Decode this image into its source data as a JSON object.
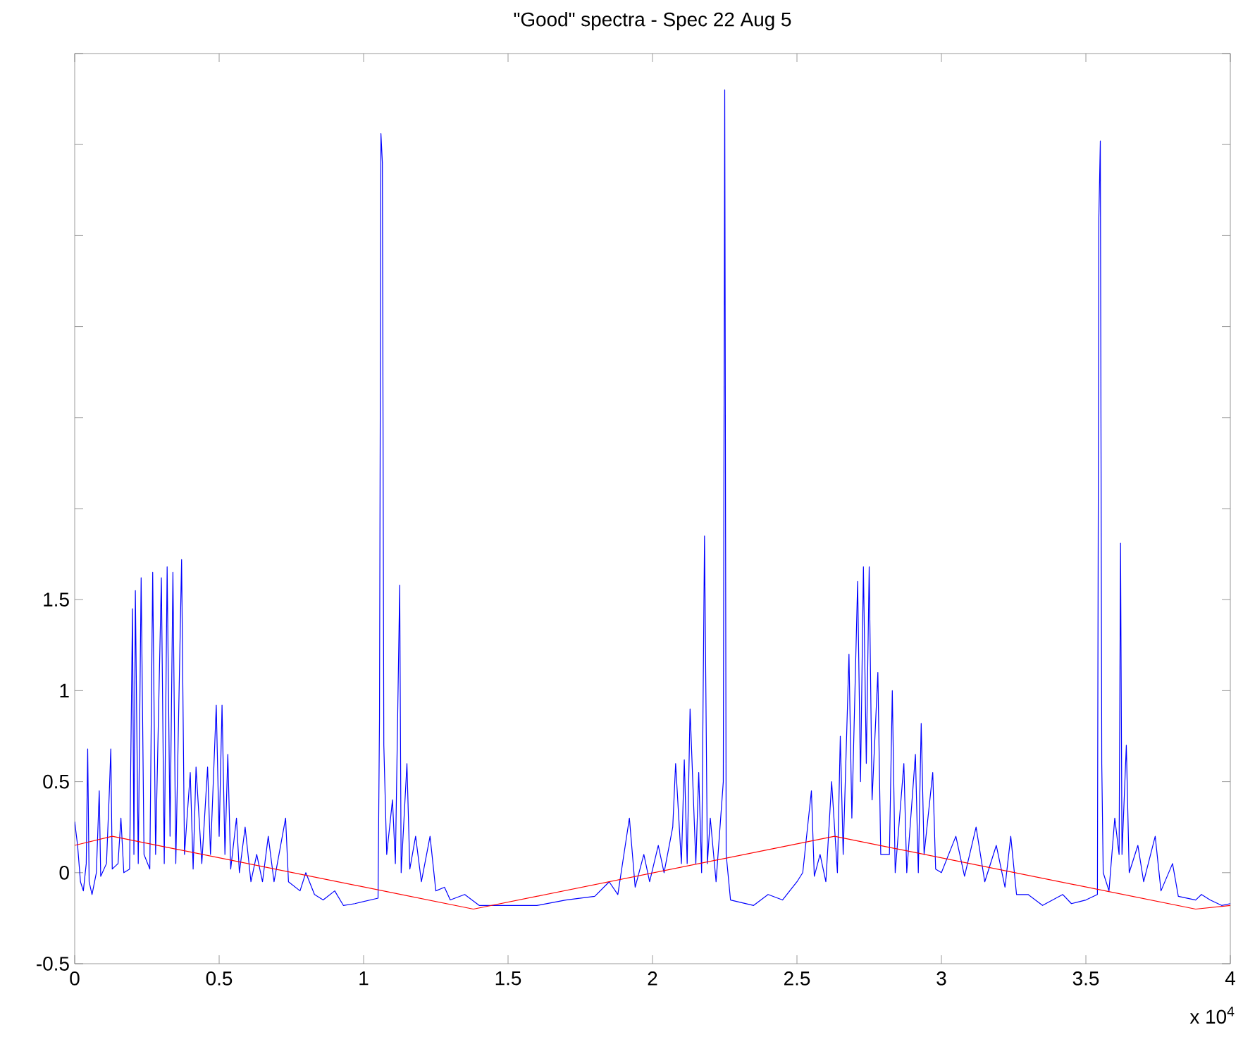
{
  "chart_data": {
    "type": "line",
    "title": "\"Good\" spectra - Spec 22 Aug 5",
    "annotations": [
      "x 10$^{4}$"
    ],
    "xlim": [
      0,
      4
    ],
    "xticks": [
      0,
      0.5,
      1,
      1.5,
      2,
      2.5,
      3,
      3.5,
      4
    ],
    "ylim": [
      -0.5,
      4.5
    ],
    "yticks": [
      -0.5,
      0,
      0.5,
      1,
      1.5,
      {
        "value": 2,
        "label": null
      },
      {
        "value": 2.5,
        "label": null
      },
      {
        "value": 3,
        "label": null
      },
      {
        "value": 3.5,
        "label": null
      },
      {
        "value": 4,
        "label": null
      },
      {
        "value": 4.5,
        "label": null
      }
    ],
    "grid": false,
    "marker": "none",
    "line_style": "solid",
    "series": [
      {
        "color": "#0000ff",
        "x": [
          0,
          0.01,
          0.02,
          0.03,
          0.04,
          0.045,
          0.05,
          0.06,
          0.075,
          0.085,
          0.09,
          0.11,
          0.12,
          0.125,
          0.13,
          0.15,
          0.16,
          0.17,
          0.19,
          0.2,
          0.205,
          0.21,
          0.22,
          0.23,
          0.24,
          0.26,
          0.27,
          0.28,
          0.3,
          0.31,
          0.32,
          0.33,
          0.34,
          0.35,
          0.37,
          0.38,
          0.4,
          0.41,
          0.42,
          0.44,
          0.46,
          0.47,
          0.49,
          0.5,
          0.51,
          0.52,
          0.53,
          0.54,
          0.56,
          0.57,
          0.59,
          0.61,
          0.63,
          0.65,
          0.67,
          0.69,
          0.73,
          0.74,
          0.78,
          0.8,
          0.83,
          0.86,
          0.9,
          0.93,
          0.97,
          1.05,
          1.055,
          1.06,
          1.065,
          1.07,
          1.08,
          1.1,
          1.11,
          1.125,
          1.13,
          1.15,
          1.16,
          1.18,
          1.2,
          1.23,
          1.25,
          1.28,
          1.3,
          1.35,
          1.4,
          1.5,
          1.6,
          1.7,
          1.8,
          1.85,
          1.88,
          1.92,
          1.94,
          1.97,
          1.99,
          2.02,
          2.04,
          2.07,
          2.08,
          2.1,
          2.11,
          2.12,
          2.13,
          2.15,
          2.16,
          2.17,
          2.18,
          2.19,
          2.2,
          2.22,
          2.245,
          2.25,
          2.255,
          2.27,
          2.35,
          2.4,
          2.45,
          2.5,
          2.52,
          2.55,
          2.56,
          2.58,
          2.6,
          2.62,
          2.64,
          2.65,
          2.66,
          2.68,
          2.69,
          2.71,
          2.72,
          2.73,
          2.74,
          2.75,
          2.76,
          2.78,
          2.79,
          2.82,
          2.83,
          2.84,
          2.87,
          2.88,
          2.91,
          2.92,
          2.93,
          2.94,
          2.97,
          2.98,
          3.0,
          3.05,
          3.08,
          3.12,
          3.15,
          3.19,
          3.22,
          3.24,
          3.26,
          3.3,
          3.35,
          3.42,
          3.45,
          3.5,
          3.54,
          3.545,
          3.55,
          3.555,
          3.56,
          3.58,
          3.6,
          3.615,
          3.62,
          3.625,
          3.64,
          3.65,
          3.68,
          3.7,
          3.74,
          3.76,
          3.8,
          3.82,
          3.88,
          3.9,
          3.93,
          3.97,
          4.0
        ],
        "values": [
          0.28,
          0.15,
          -0.05,
          -0.1,
          0.05,
          0.68,
          -0.05,
          -0.12,
          0.0,
          0.45,
          -0.02,
          0.05,
          0.45,
          0.68,
          0.02,
          0.05,
          0.3,
          0.0,
          0.02,
          1.45,
          0.1,
          1.55,
          0.05,
          1.62,
          0.1,
          0.02,
          1.65,
          0.1,
          1.62,
          0.05,
          1.68,
          0.2,
          1.65,
          0.05,
          1.72,
          0.1,
          0.55,
          0.02,
          0.58,
          0.05,
          0.58,
          0.1,
          0.92,
          0.2,
          0.92,
          0.1,
          0.65,
          0.02,
          0.3,
          0.0,
          0.25,
          -0.05,
          0.1,
          -0.05,
          0.2,
          -0.05,
          0.3,
          -0.05,
          -0.1,
          0.0,
          -0.12,
          -0.15,
          -0.1,
          -0.18,
          -0.17,
          -0.14,
          0.85,
          4.06,
          3.9,
          0.7,
          0.1,
          0.4,
          0.05,
          1.58,
          0.0,
          0.6,
          0.02,
          0.2,
          -0.05,
          0.2,
          -0.1,
          -0.08,
          -0.15,
          -0.12,
          -0.18,
          -0.18,
          -0.18,
          -0.15,
          -0.13,
          -0.05,
          -0.12,
          0.3,
          -0.08,
          0.1,
          -0.05,
          0.15,
          0.0,
          0.25,
          0.6,
          0.05,
          0.62,
          0.05,
          0.9,
          0.05,
          0.55,
          0.0,
          1.85,
          0.05,
          0.3,
          -0.05,
          0.5,
          4.3,
          0.1,
          -0.15,
          -0.18,
          -0.12,
          -0.15,
          -0.05,
          0.0,
          0.45,
          -0.02,
          0.1,
          -0.05,
          0.5,
          0.0,
          0.75,
          0.1,
          1.2,
          0.3,
          1.6,
          0.5,
          1.68,
          0.6,
          1.68,
          0.4,
          1.1,
          0.1,
          0.1,
          1.0,
          0.0,
          0.6,
          0.0,
          0.65,
          0.0,
          0.82,
          0.1,
          0.55,
          0.02,
          0.0,
          0.2,
          -0.02,
          0.25,
          -0.05,
          0.15,
          -0.08,
          0.2,
          -0.12,
          -0.12,
          -0.18,
          -0.12,
          -0.17,
          -0.15,
          -0.12,
          3.6,
          4.02,
          0.6,
          0.0,
          -0.1,
          0.3,
          0.1,
          1.81,
          0.1,
          0.7,
          0.0,
          0.15,
          -0.05,
          0.2,
          -0.1,
          0.05,
          -0.13,
          -0.15,
          -0.12,
          -0.15,
          -0.18,
          -0.17
        ]
      },
      {
        "color": "#ff0000",
        "x": [
          0,
          0.13,
          1.38,
          2.63,
          3.88,
          4.0
        ],
        "values": [
          0.15,
          0.2,
          -0.2,
          0.2,
          -0.2,
          -0.18
        ]
      }
    ]
  }
}
